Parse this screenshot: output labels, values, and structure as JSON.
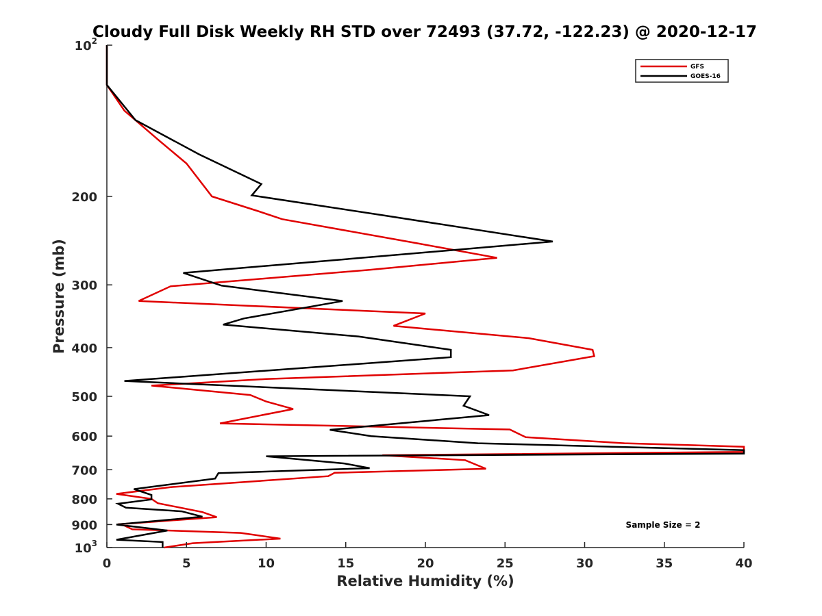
{
  "chart_data": {
    "type": "line",
    "title": "Cloudy Full Disk Weekly RH STD over 72493 (37.72, -122.23) @ 2020-12-17",
    "xlabel": "Relative Humidity (%)",
    "ylabel": "Pressure (mb)",
    "xlim": [
      0,
      40
    ],
    "ylim": [
      100,
      1000
    ],
    "yscale": "log",
    "yreversed": true,
    "x_ticks": [
      0,
      5,
      10,
      15,
      20,
      25,
      30,
      35,
      40
    ],
    "x_tick_labels": [
      "0",
      "5",
      "10",
      "15",
      "20",
      "25",
      "30",
      "35",
      "40"
    ],
    "y_ticks": [
      {
        "value": 100,
        "base": "10",
        "exp": "2"
      },
      {
        "value": 200,
        "label": "200"
      },
      {
        "value": 300,
        "label": "300"
      },
      {
        "value": 400,
        "label": "400"
      },
      {
        "value": 500,
        "label": "500"
      },
      {
        "value": 600,
        "label": "600"
      },
      {
        "value": 700,
        "label": "700"
      },
      {
        "value": 800,
        "label": "800"
      },
      {
        "value": 900,
        "label": "900"
      },
      {
        "value": 1000,
        "base": "10",
        "exp": "3"
      }
    ],
    "grid": false,
    "legend_position": "top-right",
    "annotation": "Sample Size = 2",
    "series": [
      {
        "name": "GFS",
        "color": "#e00000",
        "points": [
          [
            0,
            100
          ],
          [
            0,
            120
          ],
          [
            1.1,
            135
          ],
          [
            3.3,
            155
          ],
          [
            5,
            172
          ],
          [
            6.6,
            200
          ],
          [
            9.5,
            214
          ],
          [
            11.0,
            222
          ],
          [
            19.5,
            248
          ],
          [
            24.5,
            265
          ],
          [
            16.5,
            280
          ],
          [
            4.0,
            302
          ],
          [
            2.0,
            323
          ],
          [
            20.0,
            342
          ],
          [
            18.0,
            362
          ],
          [
            26.5,
            383
          ],
          [
            30.5,
            404
          ],
          [
            30.6,
            416
          ],
          [
            25.5,
            444
          ],
          [
            10.0,
            462
          ],
          [
            2.8,
            476
          ],
          [
            9.0,
            497
          ],
          [
            10.0,
            512
          ],
          [
            11.7,
            530
          ],
          [
            7.1,
            566
          ],
          [
            25.3,
            582
          ],
          [
            26.3,
            603
          ],
          [
            32.5,
            620
          ],
          [
            40,
            630
          ],
          [
            40,
            645
          ],
          [
            17.3,
            655
          ],
          [
            22.5,
            670
          ],
          [
            23.8,
            697
          ],
          [
            14.3,
            710
          ],
          [
            13.9,
            721
          ],
          [
            4.0,
            758
          ],
          [
            0.6,
            782
          ],
          [
            2.8,
            800
          ],
          [
            3.2,
            816
          ],
          [
            6.0,
            850
          ],
          [
            6.9,
            870
          ],
          [
            0.9,
            898
          ],
          [
            1.6,
            920
          ],
          [
            8.4,
            935
          ],
          [
            10.9,
            960
          ],
          [
            5.4,
            980
          ],
          [
            3.6,
            1000
          ]
        ]
      },
      {
        "name": "GOES-16",
        "color": "#000000",
        "points": [
          [
            0,
            100
          ],
          [
            0,
            120
          ],
          [
            1.8,
            141
          ],
          [
            5.8,
            165
          ],
          [
            9.7,
            189
          ],
          [
            9.1,
            199
          ],
          [
            17.3,
            218
          ],
          [
            28.0,
            246
          ],
          [
            14.8,
            267
          ],
          [
            4.8,
            284
          ],
          [
            7.2,
            301
          ],
          [
            14.8,
            323
          ],
          [
            8.6,
            350
          ],
          [
            7.3,
            360
          ],
          [
            15.8,
            380
          ],
          [
            21.6,
            404
          ],
          [
            21.6,
            418
          ],
          [
            1.1,
            466
          ],
          [
            22.8,
            500
          ],
          [
            22.4,
            522
          ],
          [
            24.0,
            545
          ],
          [
            14.0,
            583
          ],
          [
            16.6,
            600
          ],
          [
            23.3,
            620
          ],
          [
            40,
            640
          ],
          [
            40,
            650
          ],
          [
            10.0,
            658
          ],
          [
            14.9,
            680
          ],
          [
            16.5,
            695
          ],
          [
            7.0,
            711
          ],
          [
            6.8,
            729
          ],
          [
            1.7,
            765
          ],
          [
            2.8,
            786
          ],
          [
            2.8,
            802
          ],
          [
            0.7,
            818
          ],
          [
            1.2,
            833
          ],
          [
            4.7,
            847
          ],
          [
            6.0,
            868
          ],
          [
            0.6,
            900
          ],
          [
            3.8,
            925
          ],
          [
            0.6,
            965
          ],
          [
            3.5,
            975
          ],
          [
            3.5,
            1000
          ]
        ]
      }
    ]
  }
}
